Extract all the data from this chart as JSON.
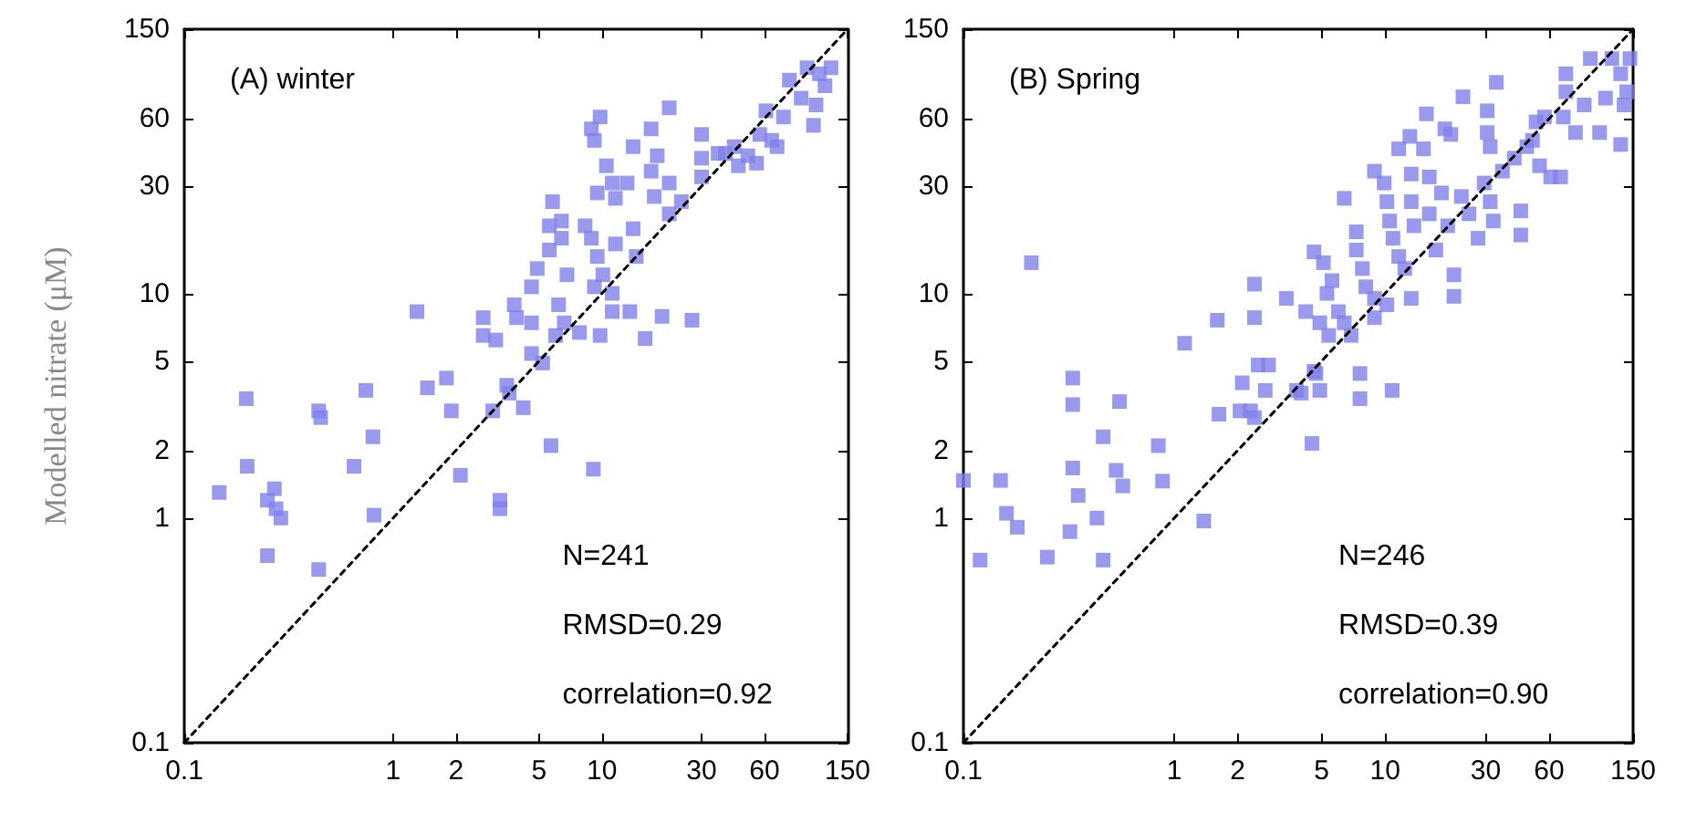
{
  "chart_data": [
    {
      "type": "scatter",
      "ylabel": "Modelled nitrate (μM)",
      "log": "xy",
      "marker": "square",
      "xlim": [
        0.1,
        150
      ],
      "ylim": [
        0.1,
        150
      ],
      "xticks": [
        0.1,
        1,
        2,
        5,
        10,
        30,
        60,
        150
      ],
      "yticks": [
        0.1,
        1,
        2,
        5,
        10,
        30,
        60,
        150
      ],
      "annotations": [
        "(A) winter",
        "N=241",
        "RMSD=0.29",
        "correlation=0.92"
      ],
      "series": [
        {
          "color": "#7f7fea",
          "x": [
            0.198,
            0.2,
            0.147,
            0.27,
            0.25,
            0.275,
            0.29,
            0.25,
            0.44,
            0.45,
            0.44,
            0.65,
            0.74,
            0.8,
            0.81,
            1.46,
            1.8,
            1.9,
            2.1,
            3.0,
            3.5,
            3.6,
            4.2,
            3.25,
            3.25,
            5.7,
            9.1,
            1.3,
            2.7,
            2.7,
            3.1,
            3.8,
            3.9,
            4.6,
            4.6,
            5.2,
            4.6,
            4.9,
            5.6,
            5.6,
            5.8,
            6.4,
            6.4,
            6.8,
            6.2,
            6.6,
            6.0,
            7.8,
            8.3,
            8.9,
            9.2,
            9.5,
            10.1,
            11.2,
            9.8,
            11.2,
            11.6,
            8.9,
            9.8,
            9.2,
            10.5,
            11.2,
            9.5,
            11.6,
            13.2,
            14.1,
            14.6,
            16.1,
            13.6,
            17.2,
            14.1,
            18.4,
            17.2,
            17.8,
            21,
            21,
            21,
            24,
            19.4,
            27,
            30,
            30,
            30,
            36,
            39,
            43,
            50,
            57,
            61,
            65,
            74,
            79,
            90,
            103,
            110,
            117,
            125,
            96,
            106,
            45,
            55,
            69
          ],
          "values": [
            3.4,
            1.7,
            1.3,
            1.35,
            1.2,
            1.1,
            1.0,
            0.68,
            3.0,
            2.8,
            0.59,
            1.7,
            3.7,
            2.3,
            1.03,
            3.8,
            4.2,
            3.0,
            1.55,
            3.0,
            3.9,
            3.6,
            3.1,
            1.2,
            1.1,
            2.1,
            1.65,
            8.3,
            7.8,
            6.5,
            6.2,
            8.9,
            7.8,
            7.4,
            5.4,
            4.9,
            10.7,
            12.9,
            15.6,
            20,
            25.6,
            21,
            17.6,
            12.1,
            8.9,
            7.4,
            6.5,
            6.7,
            20,
            17.6,
            10.7,
            14.6,
            12.1,
            8.3,
            6.5,
            10.0,
            16.6,
            54,
            61,
            48,
            37,
            31,
            28,
            26.5,
            31,
            19.4,
            14.6,
            6.3,
            8.3,
            54,
            45,
            41,
            35,
            27,
            67,
            31,
            22.6,
            25.6,
            7.9,
            7.6,
            51,
            40,
            33,
            42,
            42,
            45,
            41,
            51,
            65,
            48,
            61,
            89,
            74,
            56,
            95,
            84,
            101,
            101,
            69,
            37,
            38,
            45
          ]
        },
        {
          "type": "line",
          "color": "#000000",
          "line_style": "dashed",
          "marker": "none",
          "x": [
            0.1,
            150
          ],
          "values": [
            0.1,
            150
          ]
        }
      ]
    },
    {
      "type": "scatter",
      "log": "xy",
      "marker": "square",
      "xlim": [
        0.1,
        150
      ],
      "ylim": [
        0.1,
        150
      ],
      "xticks": [
        0.1,
        1,
        2,
        5,
        10,
        30,
        60,
        150
      ],
      "yticks": [
        0.1,
        1,
        2,
        5,
        10,
        30,
        60,
        150
      ],
      "annotations": [
        "(B) Spring",
        "N=246",
        "RMSD=0.39",
        "correlation=0.90"
      ],
      "series": [
        {
          "color": "#7f7fea",
          "x": [
            0.1,
            0.12,
            0.15,
            0.16,
            0.18,
            0.25,
            0.32,
            0.33,
            0.33,
            0.33,
            0.35,
            0.43,
            0.46,
            0.46,
            0.53,
            0.55,
            0.57,
            0.84,
            0.88,
            1.38,
            1.63,
            2.1,
            2.05,
            2.3,
            2.4,
            2.7,
            3.8,
            4.0,
            4.5,
            4.9,
            4.7,
            7.6,
            7.6,
            10.8,
            0.21,
            1.12,
            1.6,
            2.4,
            2.4,
            2.5,
            2.8,
            3.4,
            4.2,
            4.6,
            5.1,
            5.6,
            5.3,
            4.9,
            5.4,
            6.0,
            6.4,
            6.9,
            4.6,
            6.4,
            7.3,
            7.3,
            7.8,
            8.1,
            8.9,
            8.9,
            10.2,
            8.9,
            9.9,
            10.2,
            10.5,
            10.9,
            11.6,
            12.4,
            13.3,
            11.6,
            13.1,
            13.3,
            13.3,
            13.7,
            15.2,
            15.7,
            16.2,
            16.2,
            17.4,
            18.5,
            19.2,
            19.8,
            20.5,
            21.2,
            21.2,
            23,
            23.4,
            25,
            27.6,
            30.5,
            30.5,
            31.5,
            29.5,
            31.5,
            32.6,
            33.7,
            36,
            41,
            44,
            47,
            44,
            50,
            54,
            52,
            57,
            61,
            68,
            70,
            72,
            72,
            80,
            88,
            94,
            104,
            111,
            119,
            131,
            136,
            145,
            140,
            131
          ],
          "values": [
            1.47,
            0.65,
            1.47,
            1.05,
            0.91,
            0.67,
            0.87,
            3.2,
            4.2,
            1.67,
            1.26,
            1.0,
            2.3,
            0.65,
            1.63,
            3.3,
            1.39,
            2.1,
            1.46,
            0.97,
            2.9,
            4.0,
            3.0,
            3.0,
            2.8,
            3.7,
            3.7,
            3.6,
            2.15,
            3.7,
            4.4,
            4.4,
            3.4,
            3.7,
            13.7,
            6.0,
            7.6,
            11.0,
            7.8,
            4.8,
            4.8,
            9.5,
            8.3,
            15.3,
            13.7,
            11.4,
            10,
            7.4,
            6.5,
            8.3,
            7.4,
            6.5,
            4.5,
            26.5,
            18.8,
            15.6,
            12.9,
            10.7,
            9.5,
            7.8,
            8.9,
            35,
            31,
            25.6,
            21,
            17.6,
            14.6,
            12.9,
            9.5,
            44,
            50,
            34,
            25.6,
            20,
            44,
            63,
            33,
            22.6,
            15.6,
            28,
            54,
            20,
            51,
            12.1,
            9.7,
            27,
            75,
            22.6,
            17.6,
            65,
            52,
            45,
            31,
            25.6,
            21,
            87,
            35,
            40,
            18.2,
            45,
            23.3,
            48,
            37,
            58,
            61,
            33,
            33,
            61,
            95,
            79,
            52,
            69,
            111,
            52,
            74,
            111,
            46,
            69,
            111,
            79,
            95
          ]
        },
        {
          "type": "line",
          "color": "#000000",
          "line_style": "dashed",
          "marker": "none",
          "x": [
            0.1,
            150
          ],
          "values": [
            0.1,
            150
          ]
        }
      ]
    }
  ]
}
